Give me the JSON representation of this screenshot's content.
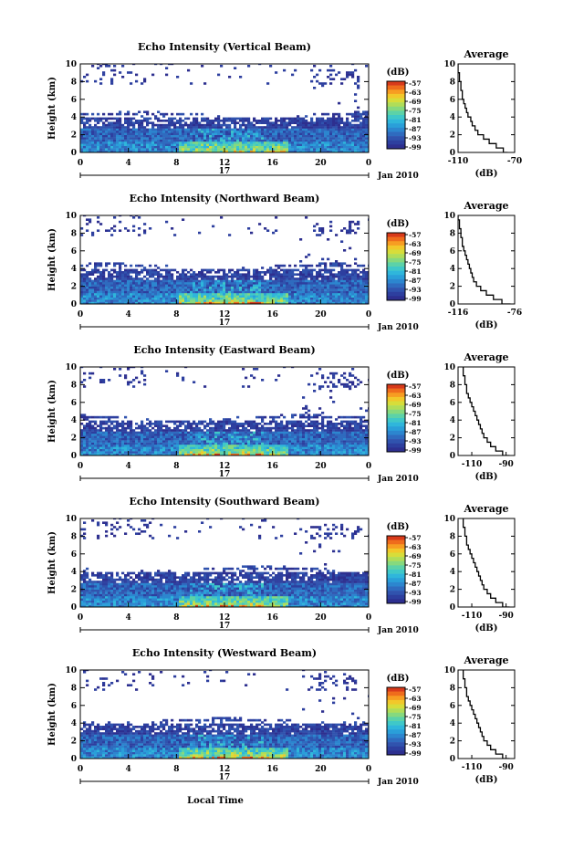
{
  "figure": {
    "xlabel": "Local Time",
    "day_label": "17",
    "date_label": "Jan 2010",
    "ylabel": "Height (km)",
    "colorbar_unit": "(dB)",
    "average_title": "Average",
    "average_xlabel": "(dB)"
  },
  "chart_data": [
    {
      "type": "heatmap",
      "title": "Echo Intensity (Vertical Beam)",
      "xlim": [
        0,
        24
      ],
      "ylim": [
        0,
        10
      ],
      "xticks": [
        "0",
        "4",
        "8",
        "12",
        "16",
        "20",
        "0"
      ],
      "yticks": [
        "0",
        "2",
        "4",
        "6",
        "8",
        "10"
      ],
      "colorbar_ticks": [
        "-57",
        "-63",
        "-69",
        "-75",
        "-81",
        "-87",
        "-93",
        "-99"
      ],
      "profile": {
        "title": "Average",
        "xlim": [
          -110,
          -70
        ],
        "xticks": [
          "-110",
          "-70"
        ],
        "height": [
          0,
          0.5,
          1,
          1.5,
          2,
          2.5,
          3,
          3.5,
          4,
          4.5,
          5,
          5.5,
          6,
          6.5,
          7,
          7.5,
          8,
          8.5,
          9,
          9.5,
          10
        ],
        "values": [
          -75,
          -78,
          -83,
          -88,
          -92,
          -96,
          -98,
          -100,
          -101,
          -103,
          -104,
          -105,
          -106,
          -107,
          -107,
          -108,
          -108,
          -109,
          -109,
          -110,
          -110
        ]
      }
    },
    {
      "type": "heatmap",
      "title": "Echo Intensity (Northward Beam)",
      "xlim": [
        0,
        24
      ],
      "ylim": [
        0,
        10
      ],
      "xticks": [
        "0",
        "4",
        "8",
        "12",
        "16",
        "20",
        "0"
      ],
      "yticks": [
        "0",
        "2",
        "4",
        "6",
        "8",
        "10"
      ],
      "colorbar_ticks": [
        "-57",
        "-63",
        "-69",
        "-75",
        "-81",
        "-87",
        "-93",
        "-99"
      ],
      "profile": {
        "title": "Average",
        "xlim": [
          -116,
          -76
        ],
        "xticks": [
          "-116",
          "-76"
        ],
        "height": [
          0,
          0.5,
          1,
          1.5,
          2,
          2.5,
          3,
          3.5,
          4,
          4.5,
          5,
          5.5,
          6,
          6.5,
          7,
          7.5,
          8,
          8.5,
          9,
          9.5,
          10
        ],
        "values": [
          -79,
          -85,
          -91,
          -96,
          -100,
          -103,
          -105,
          -106,
          -107,
          -108,
          -109,
          -110,
          -111,
          -112,
          -113,
          -113,
          -114,
          -114,
          -115,
          -115,
          -116
        ]
      }
    },
    {
      "type": "heatmap",
      "title": "Echo Intensity (Eastward Beam)",
      "xlim": [
        0,
        24
      ],
      "ylim": [
        0,
        10
      ],
      "xticks": [
        "0",
        "4",
        "8",
        "12",
        "16",
        "20",
        "0"
      ],
      "yticks": [
        "0",
        "2",
        "4",
        "6",
        "8",
        "10"
      ],
      "colorbar_ticks": [
        "-57",
        "-63",
        "-69",
        "-75",
        "-81",
        "-87",
        "-93",
        "-99"
      ],
      "profile": {
        "title": "Average",
        "xlim": [
          -118,
          -85
        ],
        "xticks": [
          "-110",
          "-90"
        ],
        "height": [
          0,
          0.5,
          1,
          1.5,
          2,
          2.5,
          3,
          3.5,
          4,
          4.5,
          5,
          5.5,
          6,
          6.5,
          7,
          7.5,
          8,
          8.5,
          9,
          9.5,
          10
        ],
        "values": [
          -88,
          -92,
          -96,
          -99,
          -101,
          -103,
          -104,
          -105,
          -106,
          -107,
          -108,
          -109,
          -110,
          -111,
          -112,
          -113,
          -113,
          -114,
          -114,
          -115,
          -115
        ]
      }
    },
    {
      "type": "heatmap",
      "title": "Echo Intensity (Southward Beam)",
      "xlim": [
        0,
        24
      ],
      "ylim": [
        0,
        10
      ],
      "xticks": [
        "0",
        "4",
        "8",
        "12",
        "16",
        "20",
        "0"
      ],
      "yticks": [
        "0",
        "2",
        "4",
        "6",
        "8",
        "10"
      ],
      "colorbar_ticks": [
        "-57",
        "-63",
        "-69",
        "-75",
        "-81",
        "-87",
        "-93",
        "-99"
      ],
      "profile": {
        "title": "Average",
        "xlim": [
          -118,
          -85
        ],
        "xticks": [
          "-110",
          "-90"
        ],
        "height": [
          0,
          0.5,
          1,
          1.5,
          2,
          2.5,
          3,
          3.5,
          4,
          4.5,
          5,
          5.5,
          6,
          6.5,
          7,
          7.5,
          8,
          8.5,
          9,
          9.5,
          10
        ],
        "values": [
          -88,
          -92,
          -96,
          -99,
          -101,
          -103,
          -104,
          -105,
          -106,
          -107,
          -108,
          -109,
          -110,
          -111,
          -112,
          -113,
          -113,
          -114,
          -114,
          -115,
          -115
        ]
      }
    },
    {
      "type": "heatmap",
      "title": "Echo Intensity (Westward Beam)",
      "xlim": [
        0,
        24
      ],
      "ylim": [
        0,
        10
      ],
      "xticks": [
        "0",
        "4",
        "8",
        "12",
        "16",
        "20",
        "0"
      ],
      "yticks": [
        "0",
        "2",
        "4",
        "6",
        "8",
        "10"
      ],
      "colorbar_ticks": [
        "-57",
        "-63",
        "-69",
        "-75",
        "-81",
        "-87",
        "-93",
        "-99"
      ],
      "profile": {
        "title": "Average",
        "xlim": [
          -118,
          -85
        ],
        "xticks": [
          "-110",
          "-90"
        ],
        "height": [
          0,
          0.5,
          1,
          1.5,
          2,
          2.5,
          3,
          3.5,
          4,
          4.5,
          5,
          5.5,
          6,
          6.5,
          7,
          7.5,
          8,
          8.5,
          9,
          9.5,
          10
        ],
        "values": [
          -88,
          -92,
          -96,
          -99,
          -101,
          -103,
          -104,
          -105,
          -106,
          -107,
          -108,
          -109,
          -110,
          -111,
          -112,
          -113,
          -113,
          -114,
          -114,
          -115,
          -115
        ]
      }
    }
  ]
}
